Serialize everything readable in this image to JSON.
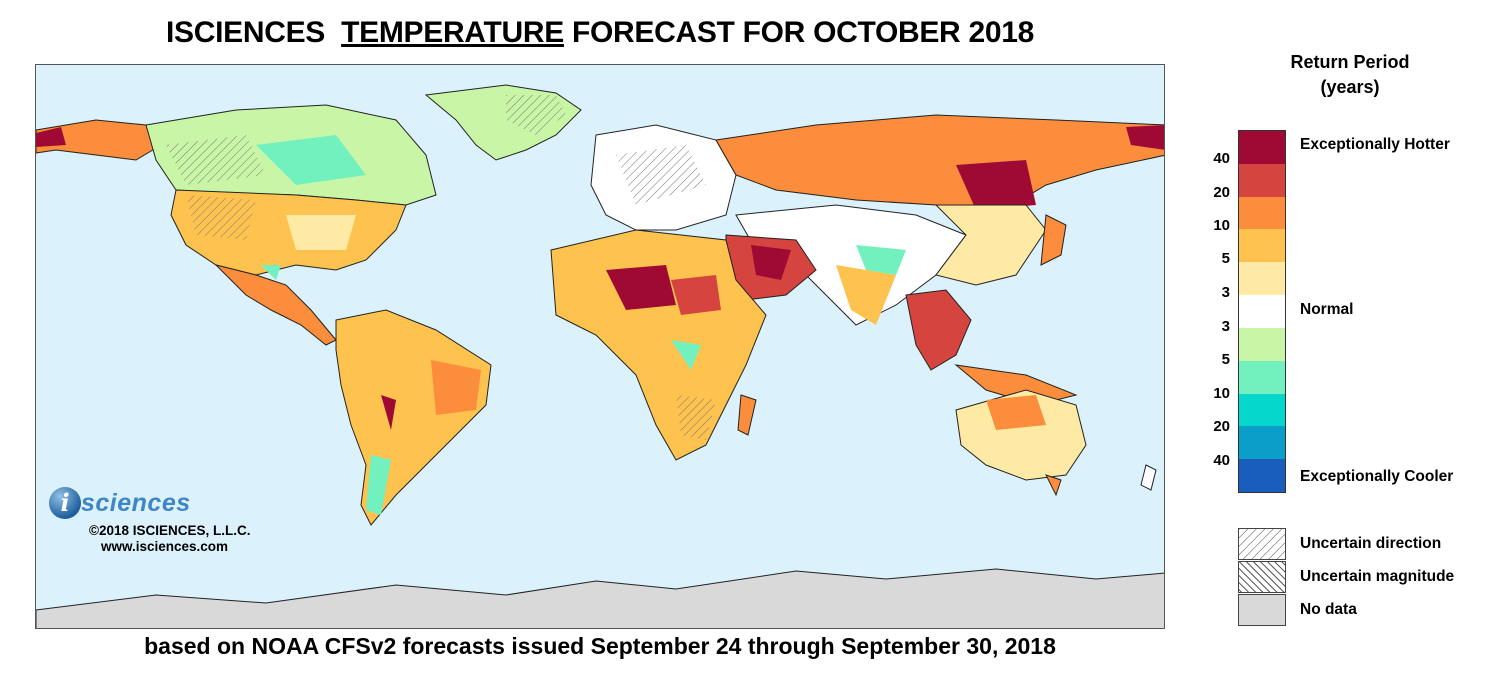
{
  "title": {
    "prefix": "ISCIENCES",
    "emphasis": "TEMPERATURE",
    "suffix": "FORECAST FOR OCTOBER 2018"
  },
  "subtitle": "based on NOAA CFSv2 forecasts issued September 24 through September 30, 2018",
  "logo": {
    "mark": "i",
    "word": "sciences",
    "copyright": "©2018 ISCIENCES, L.L.C.",
    "url": "www.isciences.com"
  },
  "legend": {
    "title_line1": "Return Period",
    "title_line2": "(years)",
    "hot_label": "Exceptionally Hotter",
    "normal_label": "Normal",
    "cool_label": "Exceptionally Cooler",
    "colors": [
      "#9e0a33",
      "#d6443f",
      "#fc8d3c",
      "#fec24f",
      "#feeaa4",
      "#ffffff",
      "#c9f6a6",
      "#72f0bd",
      "#06d7cc",
      "#0a9ec9",
      "#1a5ebd"
    ],
    "ticks": [
      "40",
      "20",
      "10",
      "5",
      "3",
      "3",
      "5",
      "10",
      "20",
      "40"
    ]
  },
  "keys": [
    {
      "icon": "uncertain-direction-hatch-icon",
      "label": "Uncertain direction"
    },
    {
      "icon": "uncertain-magnitude-hatch-icon",
      "label": "Uncertain magnitude"
    },
    {
      "icon": "no-data-swatch-icon",
      "label": "No data"
    }
  ],
  "map_colors": {
    "ocean": "#dbf1fb",
    "no_data": "#d9d9d9",
    "border": "#222222"
  }
}
